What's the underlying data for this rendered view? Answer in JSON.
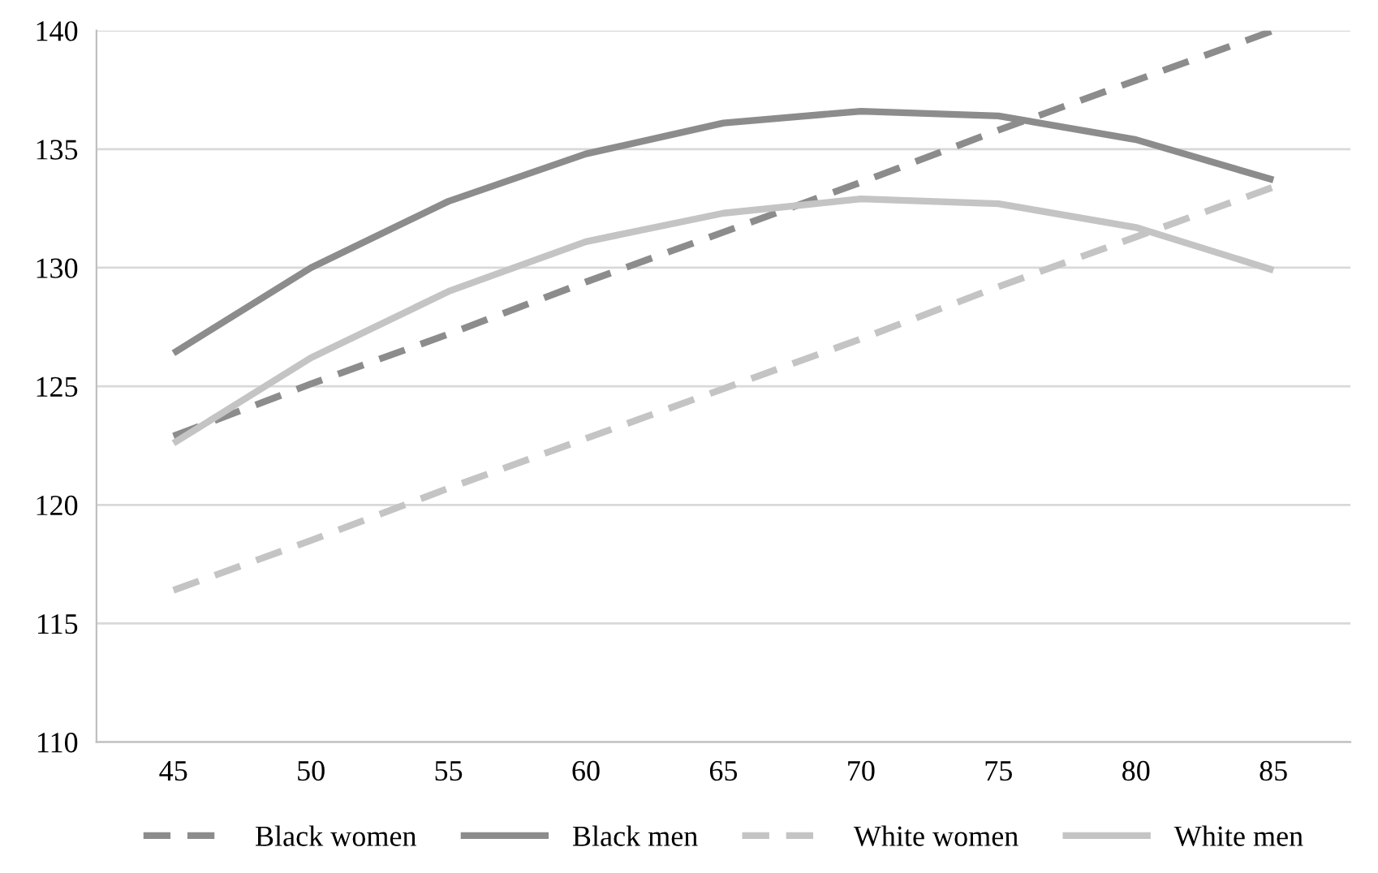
{
  "chart_data": {
    "type": "line",
    "x": [
      45,
      50,
      55,
      60,
      65,
      70,
      75,
      80,
      85
    ],
    "series": [
      {
        "name": "Black women",
        "color": "#8c8c8c",
        "line_style": "dashed",
        "values": [
          122.9,
          125.1,
          127.2,
          129.4,
          131.5,
          133.6,
          135.8,
          137.9,
          140.0
        ]
      },
      {
        "name": "Black men",
        "color": "#8c8c8c",
        "line_style": "solid",
        "values": [
          126.4,
          130.0,
          132.8,
          134.8,
          136.1,
          136.6,
          136.4,
          135.4,
          133.7
        ]
      },
      {
        "name": "White women",
        "color": "#c4c4c4",
        "line_style": "dashed",
        "values": [
          116.4,
          118.5,
          120.7,
          122.8,
          124.9,
          127.0,
          129.2,
          131.3,
          133.4
        ]
      },
      {
        "name": "White men",
        "color": "#c4c4c4",
        "line_style": "solid",
        "values": [
          122.6,
          126.2,
          129.0,
          131.1,
          132.3,
          132.9,
          132.7,
          131.7,
          129.9
        ]
      }
    ],
    "xlim": [
      42.2,
      87.8
    ],
    "xticks": [
      45,
      50,
      55,
      60,
      65,
      70,
      75,
      80,
      85
    ],
    "ylim": [
      110,
      140
    ],
    "yticks": [
      110,
      115,
      120,
      125,
      130,
      135,
      140
    ],
    "grid": "y",
    "legend": "bottom",
    "marker": "none"
  }
}
